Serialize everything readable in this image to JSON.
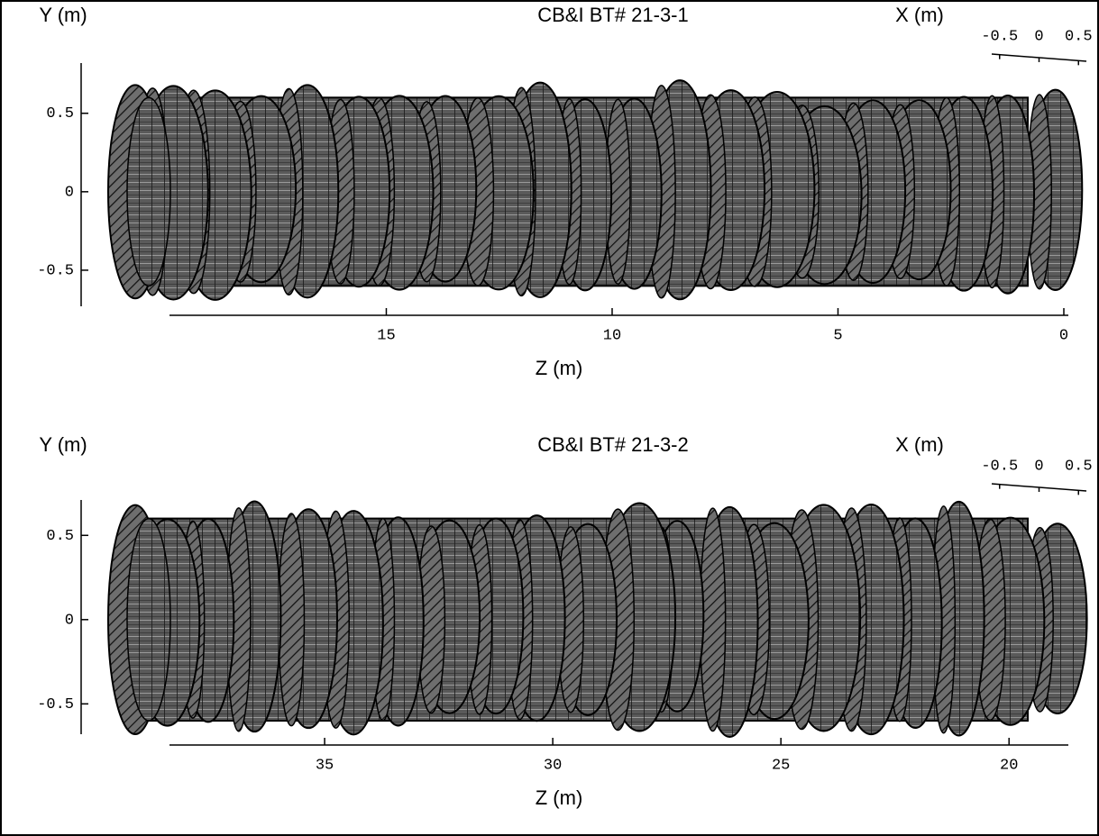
{
  "chart_data": [
    {
      "type": "surface3d",
      "title": "CB&I BT# 21-3-1",
      "ylabel": "Y (m)",
      "xlabel": "X (m)",
      "zlabel": "Z (m)",
      "ylim": [
        -0.73,
        0.82
      ],
      "yticks": [
        0.5,
        0,
        -0.5
      ],
      "zlim": [
        19.8,
        -0.1
      ],
      "zticks": [
        15,
        10,
        5,
        0
      ],
      "xlim": [
        -0.6,
        0.6
      ],
      "xticks": [
        -0.5,
        0,
        0.5
      ]
    },
    {
      "type": "surface3d",
      "title": "CB&I BT# 21-3-2",
      "ylabel": "Y (m)",
      "xlabel": "X (m)",
      "zlabel": "Z (m)",
      "ylim": [
        -0.68,
        0.71
      ],
      "yticks": [
        0.5,
        0,
        -0.5
      ],
      "zlim": [
        38.4,
        18.7
      ],
      "zticks": [
        35,
        30,
        25,
        20
      ],
      "xlim": [
        -0.6,
        0.6
      ],
      "xticks": [
        -0.5,
        0,
        0.5
      ]
    }
  ]
}
